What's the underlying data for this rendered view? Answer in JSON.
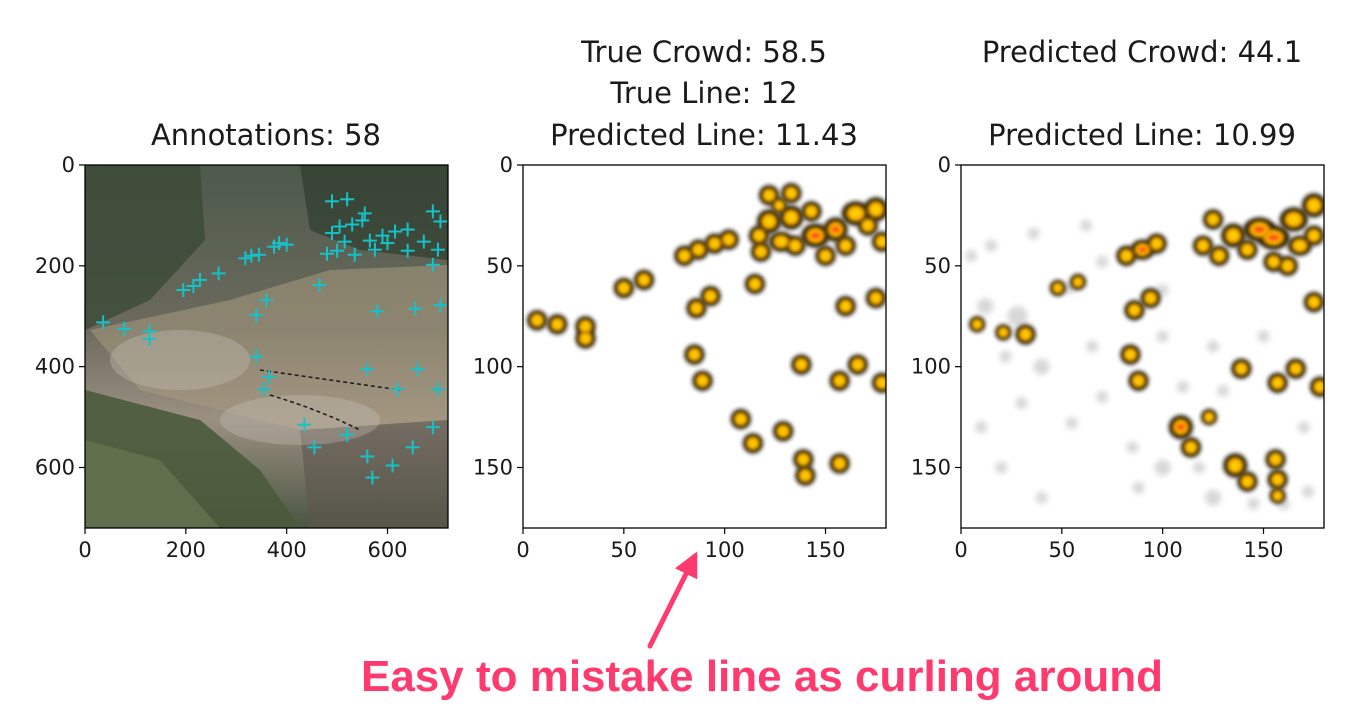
{
  "colors": {
    "marker": "#16c2c9",
    "blob_outer": "#1b1200",
    "blob_mid": "#f2a000",
    "blob_core": "#ffd000",
    "blob_hot": "#ff2a1a",
    "annotation": "#ff3a6e"
  },
  "chart_data": [
    {
      "type": "scatter",
      "title_lines": [
        "Annotations: 58"
      ],
      "xlim": [
        0,
        720
      ],
      "ylim": [
        720,
        0
      ],
      "x_ticks": [
        0,
        200,
        400,
        600
      ],
      "y_ticks": [
        0,
        200,
        400,
        600
      ],
      "grid": false,
      "background": "crowd-photo",
      "points": [
        [
          36,
          312
        ],
        [
          78,
          325
        ],
        [
          128,
          330
        ],
        [
          128,
          345
        ],
        [
          195,
          248
        ],
        [
          215,
          240
        ],
        [
          228,
          228
        ],
        [
          265,
          215
        ],
        [
          318,
          185
        ],
        [
          330,
          180
        ],
        [
          345,
          178
        ],
        [
          375,
          162
        ],
        [
          385,
          155
        ],
        [
          400,
          158
        ],
        [
          490,
          72
        ],
        [
          520,
          68
        ],
        [
          555,
          96
        ],
        [
          505,
          122
        ],
        [
          530,
          118
        ],
        [
          550,
          110
        ],
        [
          490,
          135
        ],
        [
          515,
          152
        ],
        [
          565,
          150
        ],
        [
          590,
          140
        ],
        [
          615,
          132
        ],
        [
          640,
          128
        ],
        [
          690,
          92
        ],
        [
          705,
          112
        ],
        [
          672,
          152
        ],
        [
          700,
          168
        ],
        [
          480,
          176
        ],
        [
          500,
          170
        ],
        [
          535,
          178
        ],
        [
          575,
          168
        ],
        [
          600,
          155
        ],
        [
          690,
          198
        ],
        [
          640,
          170
        ],
        [
          465,
          238
        ],
        [
          360,
          268
        ],
        [
          340,
          298
        ],
        [
          580,
          290
        ],
        [
          655,
          285
        ],
        [
          705,
          278
        ],
        [
          340,
          380
        ],
        [
          355,
          445
        ],
        [
          365,
          420
        ],
        [
          560,
          405
        ],
        [
          660,
          405
        ],
        [
          620,
          445
        ],
        [
          700,
          445
        ],
        [
          435,
          515
        ],
        [
          455,
          560
        ],
        [
          520,
          535
        ],
        [
          560,
          578
        ],
        [
          570,
          620
        ],
        [
          610,
          596
        ],
        [
          650,
          560
        ],
        [
          690,
          520
        ]
      ]
    },
    {
      "type": "heatmap",
      "title_lines": [
        "True Crowd: 58.5",
        "True Line: 12",
        "Predicted Line: 11.43"
      ],
      "xlim": [
        0,
        180
      ],
      "ylim": [
        180,
        0
      ],
      "x_ticks": [
        0,
        50,
        100,
        150
      ],
      "y_ticks": [
        0,
        50,
        100,
        150
      ],
      "grid": false,
      "background_noise": false,
      "blobs": [
        [
          7,
          77,
          5,
          5,
          1
        ],
        [
          17,
          79,
          5,
          5,
          1
        ],
        [
          31,
          80,
          5,
          5,
          1
        ],
        [
          31,
          86,
          5,
          5,
          1
        ],
        [
          50,
          61,
          5,
          5,
          1
        ],
        [
          60,
          57,
          5,
          5,
          1
        ],
        [
          80,
          45,
          5,
          5,
          1
        ],
        [
          87,
          42,
          5,
          5,
          1
        ],
        [
          95,
          39,
          5,
          5,
          1
        ],
        [
          102,
          37,
          5,
          5,
          1
        ],
        [
          86,
          71,
          5,
          5,
          1
        ],
        [
          93,
          65,
          5,
          5,
          1
        ],
        [
          85,
          94,
          5,
          5,
          1
        ],
        [
          89,
          107,
          5,
          5,
          1
        ],
        [
          108,
          126,
          5,
          5,
          1
        ],
        [
          114,
          138,
          5,
          5,
          1
        ],
        [
          129,
          132,
          5,
          5,
          1
        ],
        [
          139,
          146,
          5,
          5,
          1
        ],
        [
          140,
          154,
          5,
          5,
          1
        ],
        [
          157,
          148,
          5,
          5,
          1
        ],
        [
          138,
          99,
          5,
          5,
          1
        ],
        [
          157,
          107,
          5,
          5,
          1
        ],
        [
          166,
          99,
          5,
          5,
          1
        ],
        [
          178,
          108,
          5,
          5,
          1
        ],
        [
          115,
          59,
          5,
          5,
          1
        ],
        [
          160,
          70,
          5,
          5,
          1
        ],
        [
          175,
          66,
          5,
          5,
          1
        ],
        [
          122,
          15,
          5,
          5,
          1
        ],
        [
          133,
          14,
          5,
          5,
          1
        ],
        [
          122,
          28,
          6,
          6,
          1
        ],
        [
          133,
          26,
          6,
          6,
          1
        ],
        [
          143,
          23,
          5,
          5,
          1
        ],
        [
          145,
          35,
          7,
          6,
          2
        ],
        [
          155,
          32,
          6,
          6,
          2
        ],
        [
          128,
          38,
          6,
          5,
          1
        ],
        [
          118,
          43,
          5,
          5,
          1
        ],
        [
          135,
          40,
          5,
          5,
          1
        ],
        [
          165,
          24,
          7,
          6,
          1
        ],
        [
          175,
          22,
          6,
          6,
          1
        ],
        [
          178,
          38,
          5,
          5,
          1
        ],
        [
          150,
          45,
          5,
          5,
          1
        ],
        [
          160,
          40,
          5,
          5,
          1
        ],
        [
          117,
          35,
          5,
          5,
          1
        ],
        [
          171,
          30,
          5,
          5,
          1
        ],
        [
          127,
          20,
          4,
          4,
          1
        ]
      ]
    },
    {
      "type": "heatmap",
      "title_lines": [
        "Predicted Crowd: 44.1",
        "",
        "Predicted Line: 10.99"
      ],
      "xlim": [
        0,
        180
      ],
      "ylim": [
        180,
        0
      ],
      "x_ticks": [
        0,
        50,
        100,
        150
      ],
      "y_ticks": [
        0,
        50,
        100,
        150
      ],
      "grid": false,
      "background_noise": true,
      "blobs": [
        [
          8,
          79,
          4,
          4,
          1
        ],
        [
          21,
          83,
          4,
          4,
          1
        ],
        [
          32,
          84,
          5,
          5,
          1
        ],
        [
          48,
          61,
          4,
          4,
          1
        ],
        [
          58,
          58,
          4,
          4,
          1
        ],
        [
          82,
          45,
          5,
          5,
          1
        ],
        [
          90,
          42,
          6,
          5,
          2
        ],
        [
          97,
          39,
          5,
          5,
          1
        ],
        [
          86,
          72,
          5,
          5,
          1
        ],
        [
          94,
          66,
          5,
          5,
          1
        ],
        [
          84,
          94,
          5,
          5,
          1
        ],
        [
          88,
          107,
          5,
          5,
          1
        ],
        [
          109,
          130,
          6,
          6,
          2
        ],
        [
          114,
          140,
          5,
          5,
          1
        ],
        [
          123,
          125,
          4,
          4,
          1
        ],
        [
          136,
          149,
          6,
          6,
          1
        ],
        [
          142,
          157,
          5,
          5,
          1
        ],
        [
          139,
          101,
          5,
          5,
          1
        ],
        [
          157,
          108,
          5,
          5,
          1
        ],
        [
          166,
          101,
          5,
          5,
          1
        ],
        [
          178,
          110,
          5,
          5,
          1
        ],
        [
          156,
          146,
          5,
          5,
          1
        ],
        [
          157,
          156,
          5,
          5,
          1
        ],
        [
          175,
          68,
          5,
          5,
          1
        ],
        [
          157,
          164,
          4,
          4,
          1
        ],
        [
          125,
          27,
          5,
          5,
          1
        ],
        [
          135,
          35,
          6,
          6,
          1
        ],
        [
          148,
          32,
          8,
          6,
          2
        ],
        [
          155,
          36,
          8,
          6,
          2
        ],
        [
          165,
          27,
          7,
          6,
          1
        ],
        [
          175,
          20,
          6,
          6,
          1
        ],
        [
          168,
          40,
          6,
          5,
          1
        ],
        [
          128,
          45,
          5,
          5,
          1
        ],
        [
          155,
          48,
          5,
          5,
          1
        ],
        [
          162,
          50,
          5,
          5,
          1
        ],
        [
          175,
          35,
          5,
          5,
          1
        ],
        [
          142,
          42,
          5,
          5,
          1
        ],
        [
          120,
          40,
          5,
          5,
          1
        ]
      ],
      "noise": [
        [
          36,
          34,
          3
        ],
        [
          54,
          61,
          3
        ],
        [
          12,
          70,
          4
        ],
        [
          28,
          75,
          5
        ],
        [
          22,
          95,
          3
        ],
        [
          40,
          100,
          4
        ],
        [
          30,
          118,
          3
        ],
        [
          70,
          115,
          3
        ],
        [
          55,
          128,
          3
        ],
        [
          85,
          140,
          3
        ],
        [
          100,
          150,
          4
        ],
        [
          118,
          150,
          3
        ],
        [
          125,
          165,
          4
        ],
        [
          160,
          168,
          3
        ],
        [
          172,
          162,
          3
        ],
        [
          145,
          168,
          3
        ],
        [
          88,
          160,
          3
        ],
        [
          40,
          165,
          3
        ],
        [
          20,
          150,
          3
        ],
        [
          10,
          130,
          3
        ],
        [
          65,
          90,
          3
        ],
        [
          100,
          85,
          3
        ],
        [
          125,
          90,
          3
        ],
        [
          150,
          85,
          3
        ],
        [
          170,
          130,
          3
        ],
        [
          5,
          45,
          3
        ],
        [
          15,
          40,
          3
        ],
        [
          110,
          110,
          3
        ],
        [
          70,
          48,
          3
        ],
        [
          62,
          30,
          3
        ],
        [
          100,
          62,
          3
        ],
        [
          130,
          112,
          3
        ]
      ]
    }
  ],
  "annotation": {
    "caption": "Easy to mistake line as curling around"
  }
}
